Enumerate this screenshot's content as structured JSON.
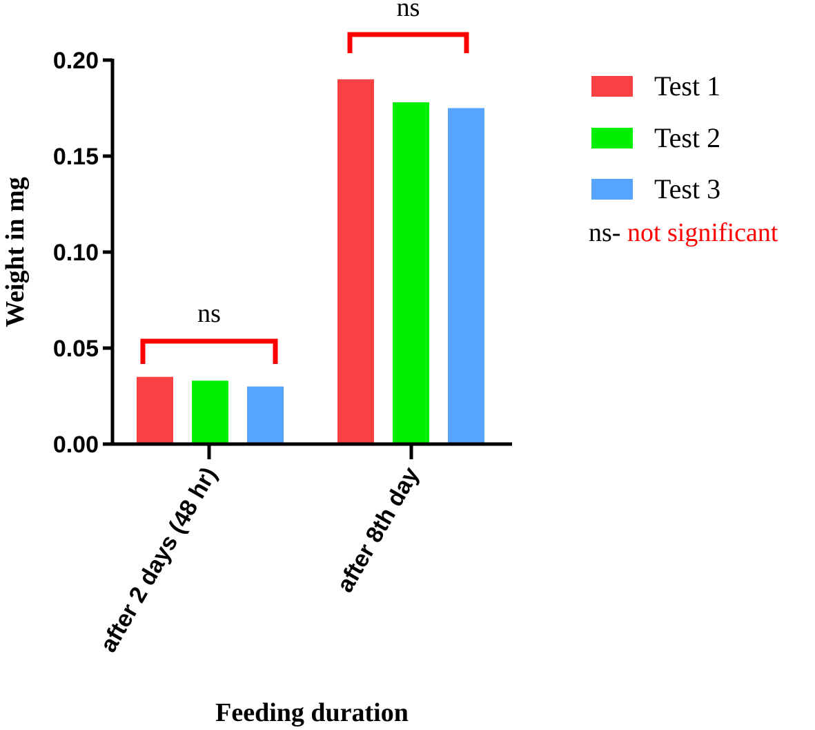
{
  "chart_data": {
    "type": "bar",
    "title": "",
    "xlabel": "Feeding duration",
    "ylabel": "Weight in mg",
    "ylim": [
      0,
      0.2
    ],
    "yticks": [
      "0.00",
      "0.05",
      "0.10",
      "0.15",
      "0.20"
    ],
    "categories": [
      "after 2 days (48 hr)",
      "after 8th day"
    ],
    "series": [
      {
        "name": "Test 1",
        "color": "#f94144",
        "values": [
          0.035,
          0.19
        ]
      },
      {
        "name": "Test 2",
        "color": "#00f000",
        "values": [
          0.033,
          0.178
        ]
      },
      {
        "name": "Test 3",
        "color": "#56a4fc",
        "values": [
          0.03,
          0.175
        ]
      }
    ],
    "annotations": [
      {
        "category": 0,
        "text": "ns",
        "color": "#ff0000"
      },
      {
        "category": 1,
        "text": "ns",
        "color": "#ff0000"
      }
    ],
    "legend_position": "right",
    "note": {
      "prefix": "ns- ",
      "text": "not significant",
      "color": "#ff0000"
    }
  }
}
